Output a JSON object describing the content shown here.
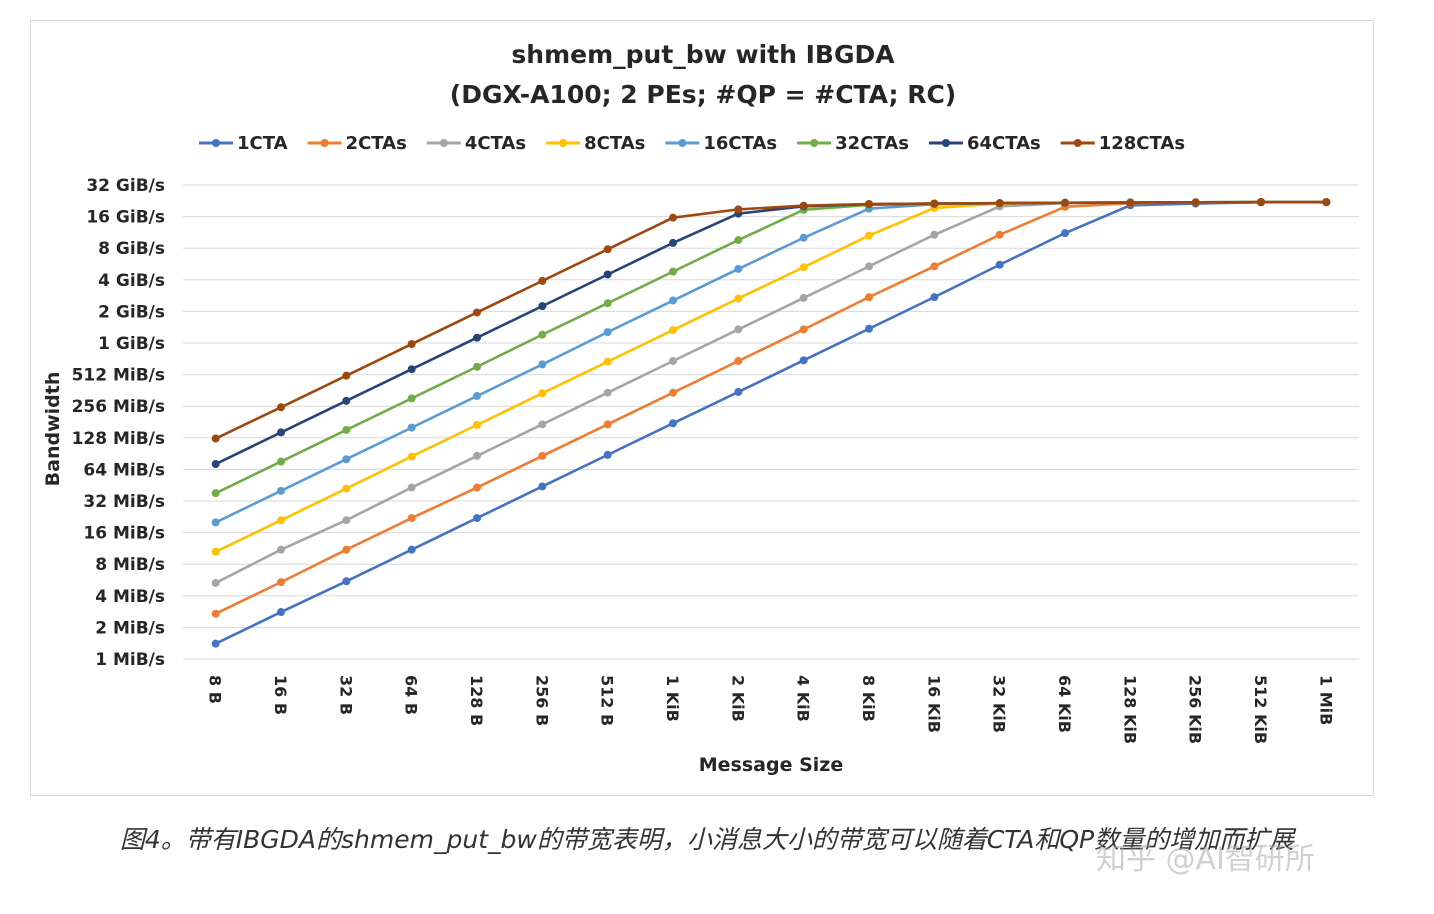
{
  "chart_data": {
    "type": "line",
    "title_line1": "shmem_put_bw with IBGDA",
    "title_line2": "(DGX-A100; 2 PEs; #QP = #CTA; RC)",
    "xlabel": "Message Size",
    "ylabel": "Bandwidth",
    "y_scale": "log2",
    "ylim": [
      "1 MiB/s",
      "32 GiB/s"
    ],
    "grid": "horizontal",
    "legend_position": "top",
    "categories": [
      "8 B",
      "16 B",
      "32 B",
      "64 B",
      "128 B",
      "256 B",
      "512 B",
      "1 KiB",
      "2 KiB",
      "4 KiB",
      "8 KiB",
      "16 KiB",
      "32 KiB",
      "64 KiB",
      "128 KiB",
      "256 KiB",
      "512 KiB",
      "1 MiB"
    ],
    "yticks": [
      "1 MiB/s",
      "2 MiB/s",
      "4 MiB/s",
      "8 MiB/s",
      "16 MiB/s",
      "32 MiB/s",
      "64 MiB/s",
      "128 MiB/s",
      "256 MiB/s",
      "512 MiB/s",
      "1 GiB/s",
      "2 GiB/s",
      "4 GiB/s",
      "8 GiB/s",
      "16 GiB/s",
      "32 GiB/s"
    ],
    "value_unit": "MiB/s",
    "series": [
      {
        "name": "1CTA",
        "color": "#4472c4",
        "values": [
          1.4,
          2.8,
          5.5,
          11,
          22,
          44,
          88,
          176,
          350,
          700,
          1400,
          2800,
          5700,
          11400,
          21000,
          21800,
          22500,
          22500
        ]
      },
      {
        "name": "2CTAs",
        "color": "#ed7d31",
        "values": [
          2.7,
          5.4,
          11,
          22,
          43,
          86,
          172,
          344,
          690,
          1380,
          2800,
          5500,
          11000,
          20300,
          22000,
          22300,
          22500,
          22500
        ]
      },
      {
        "name": "4CTAs",
        "color": "#a5a5a5",
        "values": [
          5.3,
          11,
          21,
          43,
          86,
          172,
          344,
          690,
          1380,
          2750,
          5500,
          11000,
          20500,
          22000,
          22300,
          22400,
          22500,
          22500
        ]
      },
      {
        "name": "8CTAs",
        "color": "#ffc000",
        "values": [
          10.5,
          21,
          42,
          85,
          170,
          340,
          680,
          1360,
          2720,
          5400,
          10800,
          19800,
          21800,
          22200,
          22300,
          22400,
          22500,
          22500
        ]
      },
      {
        "name": "16CTAs",
        "color": "#5b9bd5",
        "values": [
          20,
          40,
          80,
          160,
          320,
          640,
          1300,
          2600,
          5200,
          10300,
          19500,
          21500,
          22000,
          22200,
          22300,
          22400,
          22500,
          22500
        ]
      },
      {
        "name": "32CTAs",
        "color": "#70ad47",
        "values": [
          38,
          76,
          152,
          304,
          608,
          1230,
          2450,
          4900,
          9800,
          19000,
          21200,
          21800,
          22000,
          22200,
          22300,
          22400,
          22500,
          22500
        ]
      },
      {
        "name": "64CTAs",
        "color": "#264478",
        "values": [
          72,
          144,
          288,
          576,
          1150,
          2300,
          4600,
          9200,
          17500,
          20500,
          21500,
          21800,
          22000,
          22200,
          22300,
          22400,
          22500,
          22500
        ]
      },
      {
        "name": "128CTAs",
        "color": "#9e480e",
        "values": [
          126,
          250,
          500,
          1000,
          2000,
          4000,
          8000,
          16000,
          19200,
          20800,
          21600,
          21800,
          22000,
          22200,
          22300,
          22400,
          22500,
          22500
        ]
      }
    ]
  },
  "caption": "图4。带有IBGDA的shmem_put_bw的带宽表明，小消息大小的带宽可以随着CTA和QP数量的增加而扩展",
  "watermark": "知乎 @AI智研所"
}
